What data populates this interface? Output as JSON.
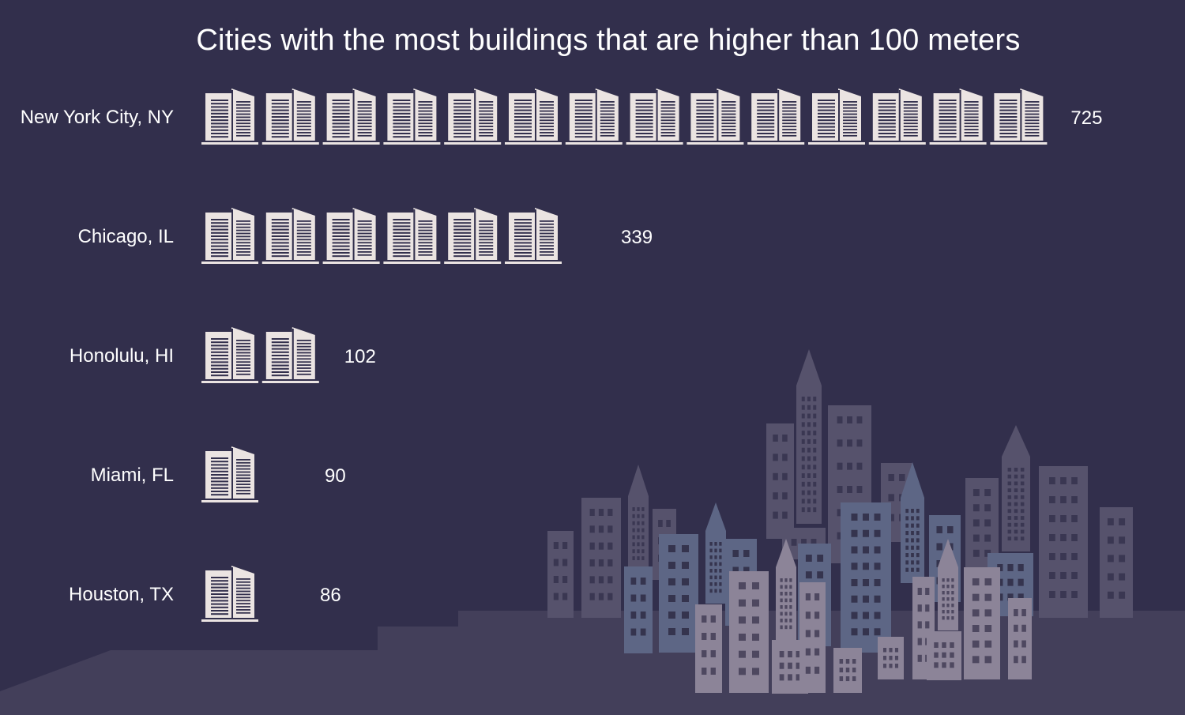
{
  "chart_data": {
    "type": "bar",
    "subtype": "pictograph",
    "title": "Cities with the most buildings that are higher than 100 meters",
    "categories": [
      "New York City, NY",
      "Chicago, IL",
      "Honolulu, HI",
      "Miami, FL",
      "Houston, TX"
    ],
    "values": [
      725,
      339,
      102,
      90,
      86
    ],
    "icon_counts": [
      14,
      6,
      2,
      1,
      1
    ],
    "icon": "building-icon",
    "xlabel": "",
    "ylabel": "",
    "grid": false,
    "legend": "none"
  },
  "colors": {
    "background": "#322f4c",
    "ground": "#433f5a",
    "icon": "#ebe4e2",
    "text": "#ffffff",
    "skyline_dark": "#56526c",
    "skyline_blue": "#5d6685",
    "skyline_light": "#8c8498"
  }
}
